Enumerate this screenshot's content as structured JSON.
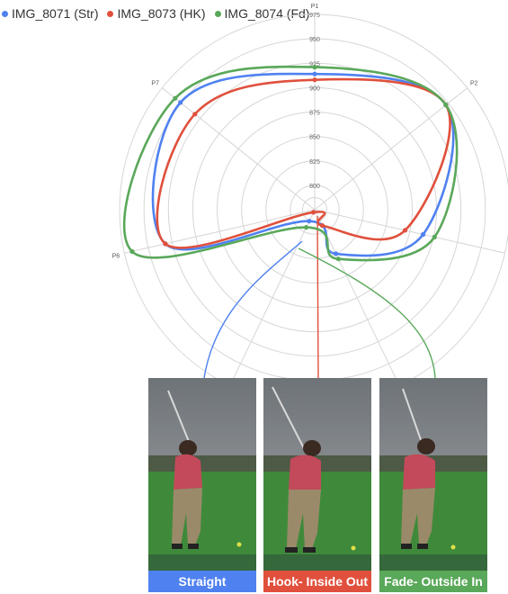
{
  "legend": [
    {
      "label": "IMG_8071 (Str)",
      "color": "#4f81f0"
    },
    {
      "label": "IMG_8073 (HK)",
      "color": "#e0503c"
    },
    {
      "label": "IMG_8074 (Fd)",
      "color": "#5aa85a"
    }
  ],
  "chart_data": {
    "type": "radar",
    "axes": [
      "P1",
      "P2",
      "P3",
      "P4",
      "P5",
      "P6",
      "P7"
    ],
    "radial_ticks": [
      "800",
      "825",
      "850",
      "875",
      "900",
      "925",
      "950",
      "975"
    ],
    "rlim": [
      775,
      975
    ],
    "grid": true,
    "legend_position": "top-left",
    "series": [
      {
        "name": "IMG_8071 (Str)",
        "color": "#4f81f0",
        "values": [
          914,
          947,
          889,
          825,
          788,
          932,
          951
        ]
      },
      {
        "name": "IMG_8073 (HK)",
        "color": "#e0503c",
        "values": [
          908,
          947,
          870,
          793,
          778,
          932,
          932
        ]
      },
      {
        "name": "IMG_8074 (Fd)",
        "color": "#5aa85a",
        "values": [
          921,
          947,
          901,
          831,
          795,
          967,
          958
        ]
      }
    ]
  },
  "panels": [
    {
      "label": "Straight",
      "color": "#4f81f0"
    },
    {
      "label": "Hook- Inside Out",
      "color": "#e0503c"
    },
    {
      "label": "Fade- Outside In",
      "color": "#5aa85a"
    }
  ]
}
